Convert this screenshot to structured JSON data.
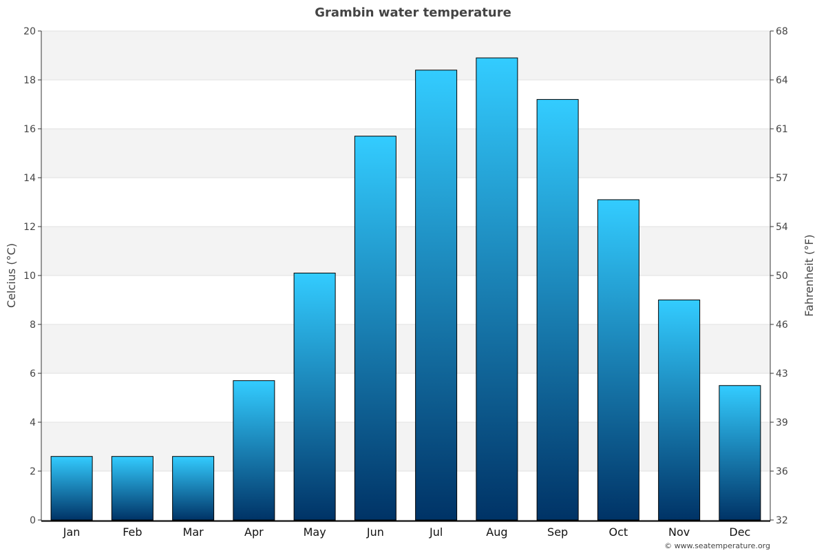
{
  "chart_data": {
    "type": "bar",
    "title": "Grambin water temperature",
    "ylabel": "Celcius (°C)",
    "ylabel_right": "Fahrenheit (°F)",
    "categories": [
      "Jan",
      "Feb",
      "Mar",
      "Apr",
      "May",
      "Jun",
      "Jul",
      "Aug",
      "Sep",
      "Oct",
      "Nov",
      "Dec"
    ],
    "values": [
      2.6,
      2.6,
      2.6,
      5.7,
      10.1,
      15.7,
      18.4,
      18.9,
      17.2,
      13.1,
      9.0,
      5.5
    ],
    "ylim": [
      0,
      20
    ],
    "yticks": [
      "0",
      "2",
      "4",
      "6",
      "8",
      "10",
      "12",
      "14",
      "16",
      "18",
      "20"
    ],
    "yticks_right": [
      "32",
      "36",
      "39",
      "43",
      "46",
      "50",
      "54",
      "57",
      "61",
      "64",
      "68"
    ],
    "grid": true,
    "colors": {
      "bar_top": "#33ccff",
      "bar_bottom": "#003366",
      "band": "#f3f3f3"
    }
  },
  "footer": "© www.seatemperature.org"
}
